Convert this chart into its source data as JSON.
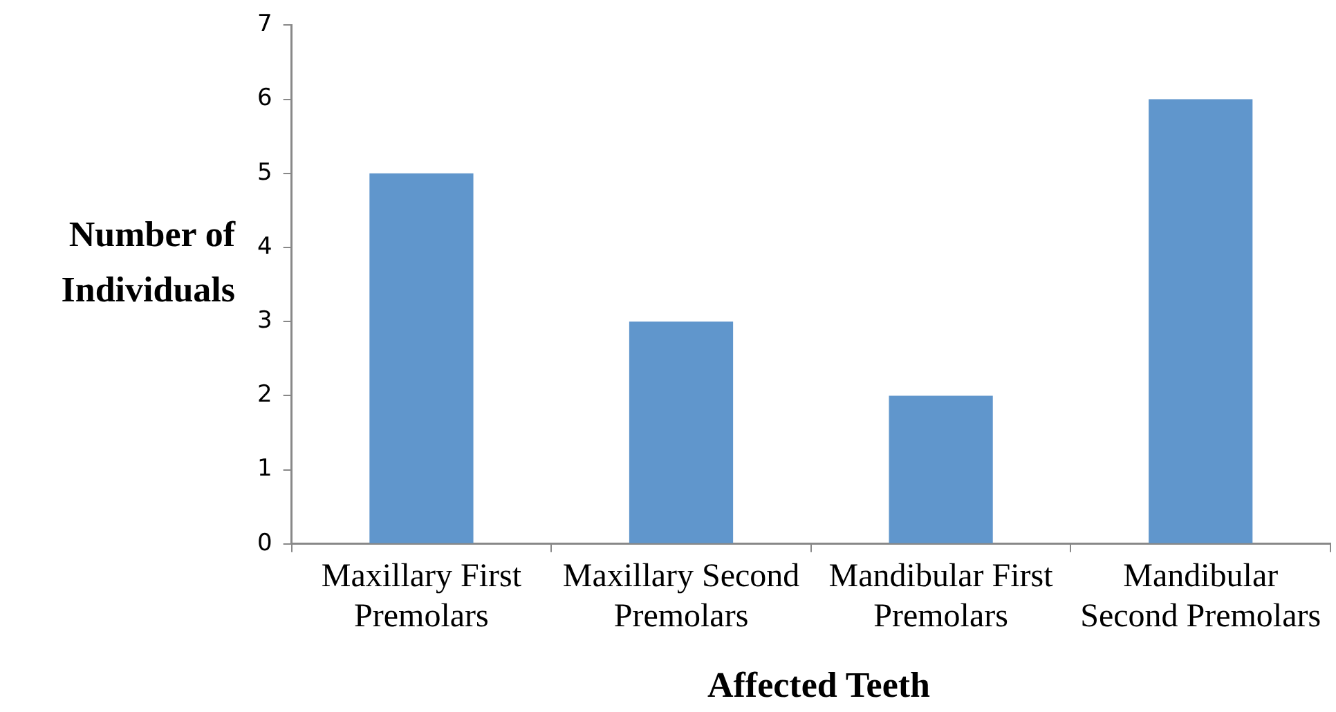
{
  "chart_data": {
    "type": "bar",
    "xlabel": "Affected Teeth",
    "ylabel": "Number of Individuals",
    "categories": [
      "Maxillary First Premolars",
      "Maxillary Second Premolars",
      "Mandibular First Premolars",
      "Mandibular Second Premolars"
    ],
    "values": [
      5,
      3,
      2,
      6
    ],
    "color": "#6096cc",
    "ylim": [
      0,
      7
    ],
    "yticks": [
      0,
      1,
      2,
      3,
      4,
      5,
      6,
      7
    ],
    "grid": false,
    "legend": false
  }
}
